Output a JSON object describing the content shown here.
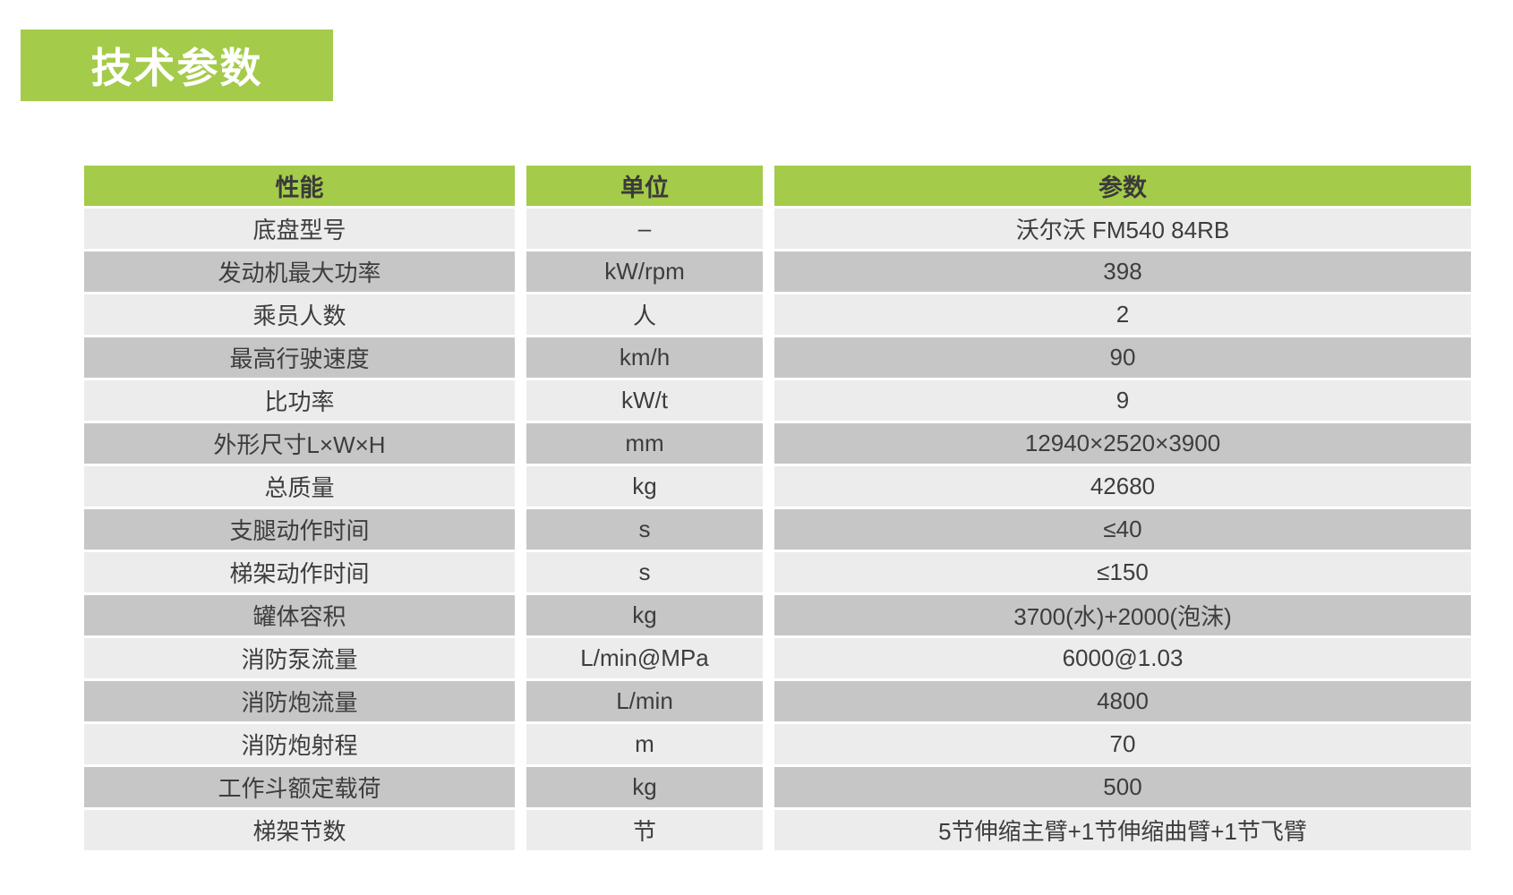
{
  "page_title": "技术参数",
  "colors": {
    "accent_green": "#a4cb4a",
    "row_light": "#ececec",
    "row_dark": "#c6c6c6",
    "title_text": "#ffffff",
    "cell_text": "#3d3d3d"
  },
  "table": {
    "columns": [
      "性能",
      "单位",
      "参数"
    ],
    "rows": [
      {
        "name": "底盘型号",
        "unit": "–",
        "value": "沃尔沃 FM540 84RB"
      },
      {
        "name": "发动机最大功率",
        "unit": "kW/rpm",
        "value": "398"
      },
      {
        "name": "乘员人数",
        "unit": "人",
        "value": "2"
      },
      {
        "name": "最高行驶速度",
        "unit": "km/h",
        "value": "90"
      },
      {
        "name": "比功率",
        "unit": "kW/t",
        "value": "9"
      },
      {
        "name": "外形尺寸L×W×H",
        "unit": "mm",
        "value": "12940×2520×3900"
      },
      {
        "name": "总质量",
        "unit": "kg",
        "value": "42680"
      },
      {
        "name": "支腿动作时间",
        "unit": "s",
        "value": "≤40"
      },
      {
        "name": "梯架动作时间",
        "unit": "s",
        "value": "≤150"
      },
      {
        "name": "罐体容积",
        "unit": "kg",
        "value": "3700(水)+2000(泡沫)"
      },
      {
        "name": "消防泵流量",
        "unit": "L/min@MPa",
        "value": "6000@1.03"
      },
      {
        "name": "消防炮流量",
        "unit": "L/min",
        "value": "4800"
      },
      {
        "name": "消防炮射程",
        "unit": "m",
        "value": "70"
      },
      {
        "name": "工作斗额定载荷",
        "unit": "kg",
        "value": "500"
      },
      {
        "name": "梯架节数",
        "unit": "节",
        "value": "5节伸缩主臂+1节伸缩曲臂+1节飞臂"
      }
    ]
  }
}
